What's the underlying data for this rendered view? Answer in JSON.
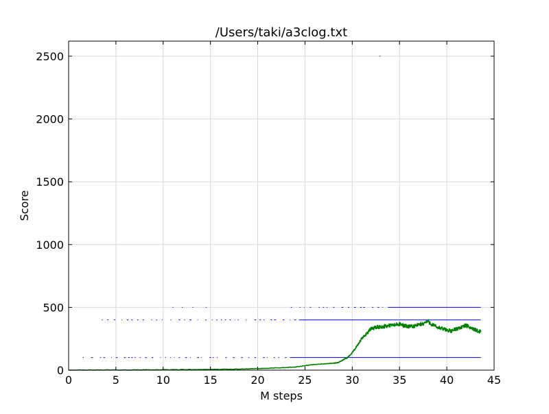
{
  "chart_data": {
    "type": "scatter",
    "title": "/Users/taki/a3clog.txt",
    "xlabel": "M steps",
    "ylabel": "Score",
    "xlim": [
      0,
      45
    ],
    "ylim": [
      0,
      2620
    ],
    "xticks": [
      0,
      5,
      10,
      15,
      20,
      25,
      30,
      35,
      40,
      45
    ],
    "xtick_labels": [
      "0",
      "5",
      "10",
      "15",
      "20",
      "25",
      "30",
      "35",
      "40",
      "45"
    ],
    "yticks": [
      0,
      500,
      1000,
      1500,
      2000,
      2500
    ],
    "ytick_labels": [
      "0",
      "500",
      "1000",
      "1500",
      "2000",
      "2500"
    ],
    "grid": true,
    "legend": "none",
    "colors": {
      "episode_scores": "#0000ff",
      "moving_average": "#008000",
      "grid": "#d9d9d9",
      "axes": "#000000"
    },
    "series": [
      {
        "kind": "scatter",
        "color": "#0000ff",
        "segments": [
          {
            "x": [
              0.2,
              43.6
            ],
            "y": 0,
            "density": "continuous"
          },
          {
            "x": [
              1.5,
              43.6
            ],
            "y": 100,
            "density": "sparse-to-dense"
          },
          {
            "x": [
              3.5,
              43.6
            ],
            "y": 400,
            "density": "sparse-to-dense"
          },
          {
            "x": [
              23.5,
              43.6
            ],
            "y": 500,
            "density": "sparse-to-dense"
          },
          {
            "x": [
              11.0,
              14.5
            ],
            "y": 500,
            "density": "very-sparse"
          }
        ],
        "isolated_points": [
          [
            32.9,
            2500
          ]
        ]
      },
      {
        "kind": "line",
        "color": "#008000",
        "x": [
          0,
          2,
          4,
          6,
          8,
          10,
          12,
          14,
          16,
          18,
          20,
          21,
          22,
          23,
          24,
          25,
          26,
          27,
          28,
          28.5,
          29,
          29.5,
          30,
          30.5,
          31,
          31.5,
          32,
          32.5,
          33,
          33.5,
          34,
          34.5,
          35,
          35.5,
          36,
          36.5,
          37,
          37.5,
          38,
          38.5,
          39,
          39.5,
          40,
          40.5,
          41,
          41.5,
          42,
          42.5,
          43,
          43.6
        ],
        "y": [
          0,
          0,
          1,
          1,
          2,
          3,
          4,
          5,
          6,
          8,
          12,
          15,
          18,
          20,
          25,
          35,
          45,
          50,
          55,
          60,
          80,
          100,
          140,
          190,
          250,
          290,
          330,
          340,
          345,
          350,
          355,
          360,
          365,
          355,
          345,
          350,
          360,
          370,
          390,
          360,
          340,
          330,
          320,
          310,
          330,
          340,
          355,
          340,
          320,
          305
        ]
      }
    ]
  }
}
